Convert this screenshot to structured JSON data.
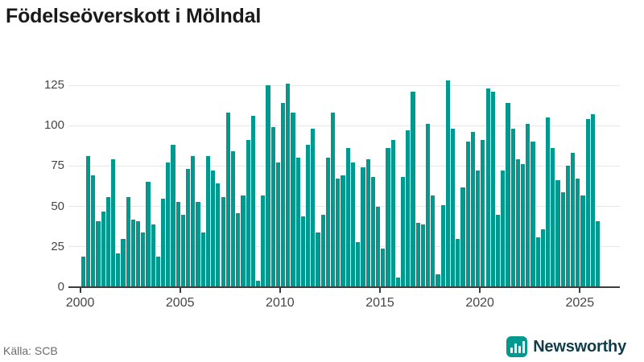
{
  "title": "Födelseöverskott i Mölndal",
  "source": "Källa: SCB",
  "branding": {
    "name": "Newsworthy",
    "icon": "bar-chart-icon"
  },
  "colors": {
    "bar": "#00998F",
    "gridline": "#e7e7e7",
    "axis_line": "#3d3d3d",
    "axis_label": "#464646",
    "title_text": "#1a1a1a",
    "source_text": "#6b6b6b",
    "brand_text": "#113c4a",
    "brand_icon_bg": "#00998F",
    "background": "#ffffff"
  },
  "chart_data": {
    "type": "bar",
    "title": "Födelseöverskott i Mölndal",
    "unit": "persons (births minus deaths) per quarter",
    "frequency": "quarterly",
    "start": "2000Q1",
    "end": "2025Q4",
    "xticks": [
      2000,
      2005,
      2010,
      2015,
      2020,
      2025
    ],
    "yticks": [
      0,
      25,
      50,
      75,
      100,
      125
    ],
    "ylim": [
      0,
      135
    ],
    "grid": "horizontal",
    "legend": "none",
    "series_by_year": [
      {
        "year": 2000,
        "values": [
          19,
          81,
          69,
          41
        ]
      },
      {
        "year": 2001,
        "values": [
          47,
          56,
          79,
          21
        ]
      },
      {
        "year": 2002,
        "values": [
          30,
          56,
          42,
          41
        ]
      },
      {
        "year": 2003,
        "values": [
          34,
          65,
          39,
          19
        ]
      },
      {
        "year": 2004,
        "values": [
          55,
          77,
          88,
          53
        ]
      },
      {
        "year": 2005,
        "values": [
          45,
          73,
          81,
          53
        ]
      },
      {
        "year": 2006,
        "values": [
          34,
          81,
          72,
          64
        ]
      },
      {
        "year": 2007,
        "values": [
          56,
          108,
          84,
          46
        ]
      },
      {
        "year": 2008,
        "values": [
          57,
          91,
          106,
          4
        ]
      },
      {
        "year": 2009,
        "values": [
          57,
          125,
          99,
          77
        ]
      },
      {
        "year": 2010,
        "values": [
          114,
          126,
          108,
          80
        ]
      },
      {
        "year": 2011,
        "values": [
          44,
          88,
          98,
          34
        ]
      },
      {
        "year": 2012,
        "values": [
          45,
          80,
          108,
          67
        ]
      },
      {
        "year": 2013,
        "values": [
          69,
          86,
          77,
          28
        ]
      },
      {
        "year": 2014,
        "values": [
          74,
          79,
          68,
          50
        ]
      },
      {
        "year": 2015,
        "values": [
          24,
          86,
          91,
          6
        ]
      },
      {
        "year": 2016,
        "values": [
          68,
          97,
          121,
          40
        ]
      },
      {
        "year": 2017,
        "values": [
          39,
          101,
          57,
          8
        ]
      },
      {
        "year": 2018,
        "values": [
          51,
          128,
          98,
          30
        ]
      },
      {
        "year": 2019,
        "values": [
          62,
          90,
          96,
          72
        ]
      },
      {
        "year": 2020,
        "values": [
          91,
          123,
          121,
          45
        ]
      },
      {
        "year": 2021,
        "values": [
          72,
          114,
          98,
          79
        ]
      },
      {
        "year": 2022,
        "values": [
          76,
          101,
          90,
          31
        ]
      },
      {
        "year": 2023,
        "values": [
          36,
          105,
          86,
          66
        ]
      },
      {
        "year": 2024,
        "values": [
          59,
          75,
          83,
          67
        ]
      },
      {
        "year": 2025,
        "values": [
          57,
          104,
          107,
          41
        ]
      }
    ]
  }
}
